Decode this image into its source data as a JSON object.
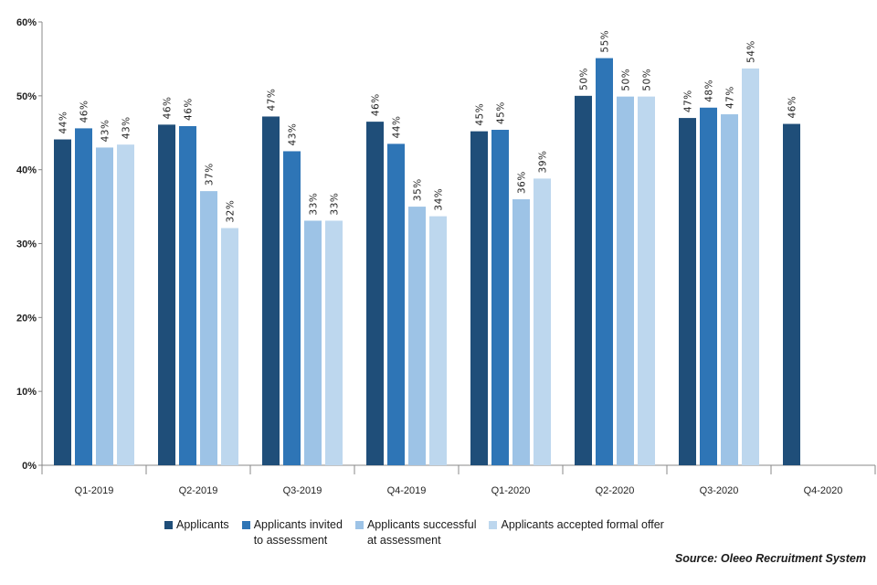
{
  "chart_data": {
    "type": "bar",
    "title": "",
    "xlabel": "",
    "ylabel": "",
    "ylim": [
      0,
      60
    ],
    "y_ticks": [
      "0%",
      "10%",
      "20%",
      "30%",
      "40%",
      "50%",
      "60%"
    ],
    "y_tick_values": [
      0,
      10,
      20,
      30,
      40,
      50,
      60
    ],
    "categories": [
      "Q1-2019",
      "Q2-2019",
      "Q3-2019",
      "Q4-2019",
      "Q1-2020",
      "Q2-2020",
      "Q3-2020",
      "Q4-2020"
    ],
    "series": [
      {
        "name": "Applicants",
        "color": "#1f4e79",
        "values": [
          44,
          46,
          47,
          46,
          45,
          50,
          47,
          46
        ],
        "exact": [
          44.1,
          46.1,
          47.2,
          46.5,
          45.2,
          50.0,
          47.0,
          46.2
        ]
      },
      {
        "name": "Applicants invited to assessment",
        "color": "#2e75b6",
        "values": [
          46,
          46,
          43,
          44,
          45,
          55,
          48,
          null
        ],
        "exact": [
          45.6,
          45.9,
          42.5,
          43.5,
          45.4,
          55.1,
          48.4,
          null
        ]
      },
      {
        "name": "Applicants successful at assessment",
        "color": "#9dc3e6",
        "values": [
          43,
          37,
          33,
          35,
          36,
          50,
          47,
          null
        ],
        "exact": [
          43.0,
          37.1,
          33.1,
          35.0,
          36.0,
          49.9,
          47.5,
          null
        ]
      },
      {
        "name": "Applicants accepted formal offer",
        "color": "#bdd7ee",
        "values": [
          43,
          32,
          33,
          34,
          39,
          50,
          54,
          null
        ],
        "exact": [
          43.4,
          32.1,
          33.1,
          33.7,
          38.8,
          49.9,
          53.7,
          null
        ]
      }
    ],
    "legend": {
      "position": "bottom",
      "items": [
        {
          "line1": "Applicants",
          "line2": ""
        },
        {
          "line1": "Applicants invited",
          "line2": "to assessment"
        },
        {
          "line1": "Applicants successful",
          "line2": "at assessment"
        },
        {
          "line1": "Applicants accepted formal offer",
          "line2": ""
        }
      ]
    },
    "grid": false,
    "source": "Source: Oleeo Recruitment System"
  }
}
